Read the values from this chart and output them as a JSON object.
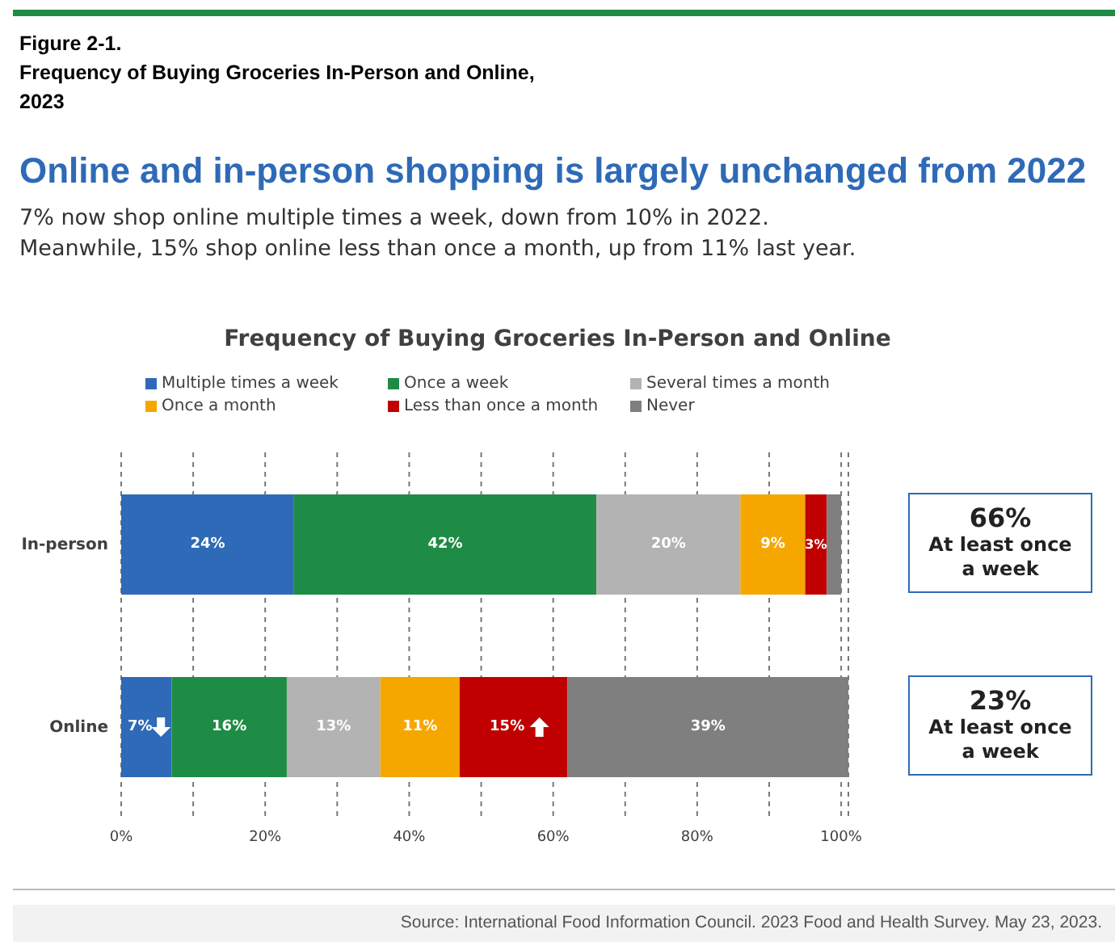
{
  "chart_data": {
    "type": "bar",
    "orientation": "horizontal",
    "stacked": true,
    "title": "Frequency of Buying Groceries In-Person and Online",
    "categories": [
      "In-person",
      "Online"
    ],
    "series": [
      {
        "name": "Multiple times a week",
        "color": "#2e6ab7",
        "values": [
          24,
          7
        ],
        "value_labels": [
          "24%",
          "7%"
        ]
      },
      {
        "name": "Once a week",
        "color": "#1e8c45",
        "values": [
          42,
          16
        ],
        "value_labels": [
          "42%",
          "16%"
        ]
      },
      {
        "name": "Several times a month",
        "color": "#b3b3b3",
        "values": [
          20,
          13
        ],
        "value_labels": [
          "20%",
          "13%"
        ]
      },
      {
        "name": "Once a month",
        "color": "#f5a700",
        "values": [
          9,
          11
        ],
        "value_labels": [
          "9%",
          "11%"
        ]
      },
      {
        "name": "Less than once a month",
        "color": "#c00000",
        "values": [
          3,
          15
        ],
        "value_labels": [
          "3%",
          "15%"
        ]
      },
      {
        "name": "Never",
        "color": "#7f7f7f",
        "values": [
          2,
          39
        ],
        "value_labels": [
          null,
          "39%"
        ]
      }
    ],
    "xlim": [
      0,
      101
    ],
    "xticks": [
      {
        "value": 0,
        "label": "0%"
      },
      {
        "value": 10,
        "label": null
      },
      {
        "value": 20,
        "label": "20%"
      },
      {
        "value": 30,
        "label": null
      },
      {
        "value": 40,
        "label": "40%"
      },
      {
        "value": 50,
        "label": null
      },
      {
        "value": 60,
        "label": "60%"
      },
      {
        "value": 70,
        "label": null
      },
      {
        "value": 80,
        "label": "80%"
      },
      {
        "value": 90,
        "label": null
      },
      {
        "value": 100,
        "label": "100%"
      }
    ],
    "grid": "x",
    "legend": "top",
    "annotations": [
      "Figure 2-1.\nFrequency of Buying Groceries In-Person and Online,\n2023",
      "Online and in-person shopping is largely unchanged from 2022",
      "7% now shop online multiple times a week, down from 10% in 2022.\nMeanwhile, 15% shop online less than once a month, up from 11% last year.",
      "66%\nAt least once a week",
      "23%\nAt least once a week",
      "Source: International Food Information Council. 2023 Food and Health Survey. May 23, 2023."
    ]
  }
}
